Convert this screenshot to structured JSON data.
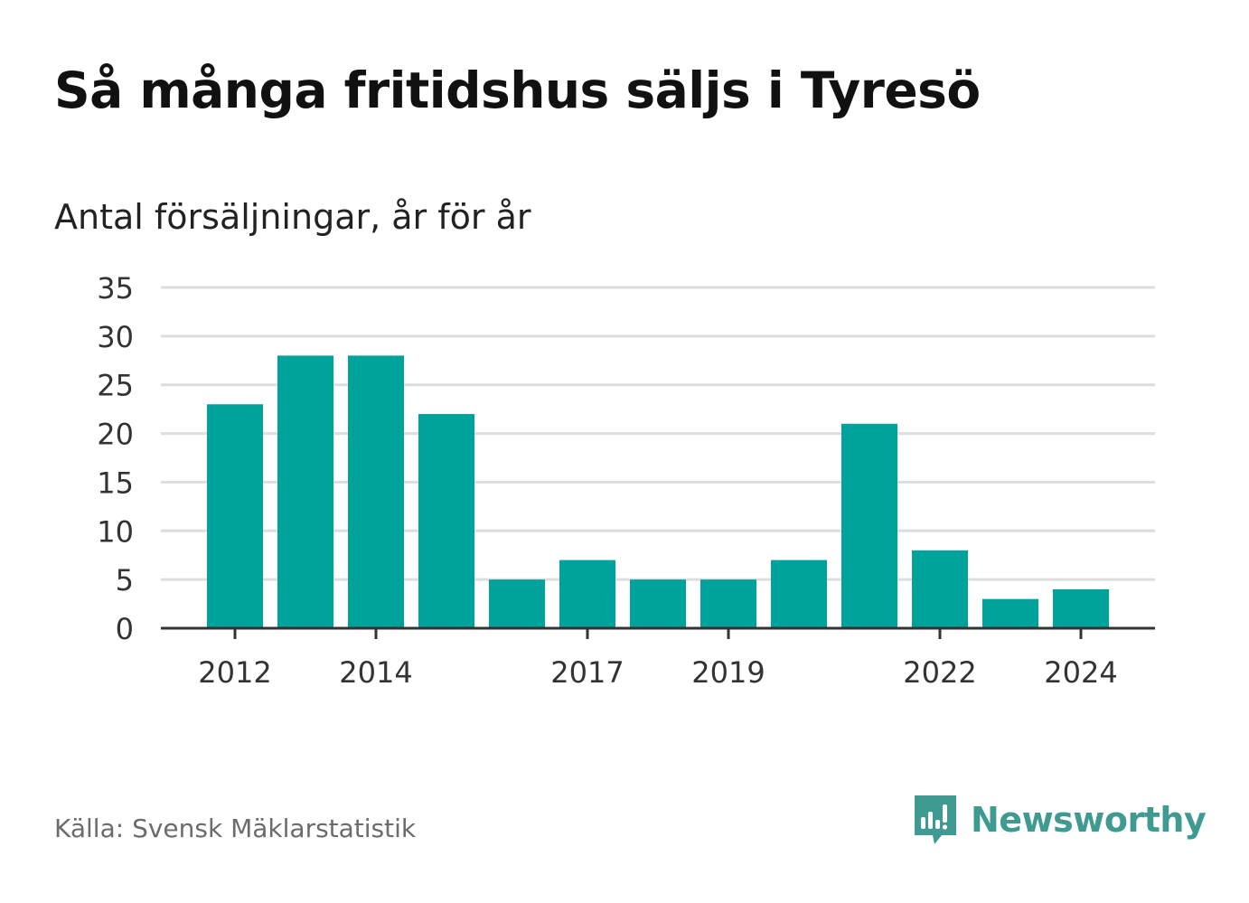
{
  "title": "Så många fritidshus säljs i Tyresö",
  "subtitle": "Antal försäljningar, år för år",
  "source": "Källa: Svensk Mäklarstatistik",
  "brand": {
    "name": "Newsworthy",
    "icon": "newsworthy-logo-icon",
    "color": "#3f9a92"
  },
  "colors": {
    "bar": "#00a39b",
    "grid": "#dddddd",
    "axis": "#333333"
  },
  "chart_data": {
    "type": "bar",
    "categories": [
      "2012",
      "2013",
      "2014",
      "2015",
      "2016",
      "2017",
      "2018",
      "2019",
      "2020",
      "2021",
      "2022",
      "2023",
      "2024"
    ],
    "values": [
      23,
      28,
      28,
      22,
      5,
      7,
      5,
      5,
      7,
      21,
      8,
      3,
      4
    ],
    "x_tick_labels": [
      "2012",
      "2014",
      "2017",
      "2019",
      "2022",
      "2024"
    ],
    "y_ticks": [
      0,
      5,
      10,
      15,
      20,
      25,
      30,
      35
    ],
    "ylim": [
      0,
      35
    ],
    "grid": true
  }
}
